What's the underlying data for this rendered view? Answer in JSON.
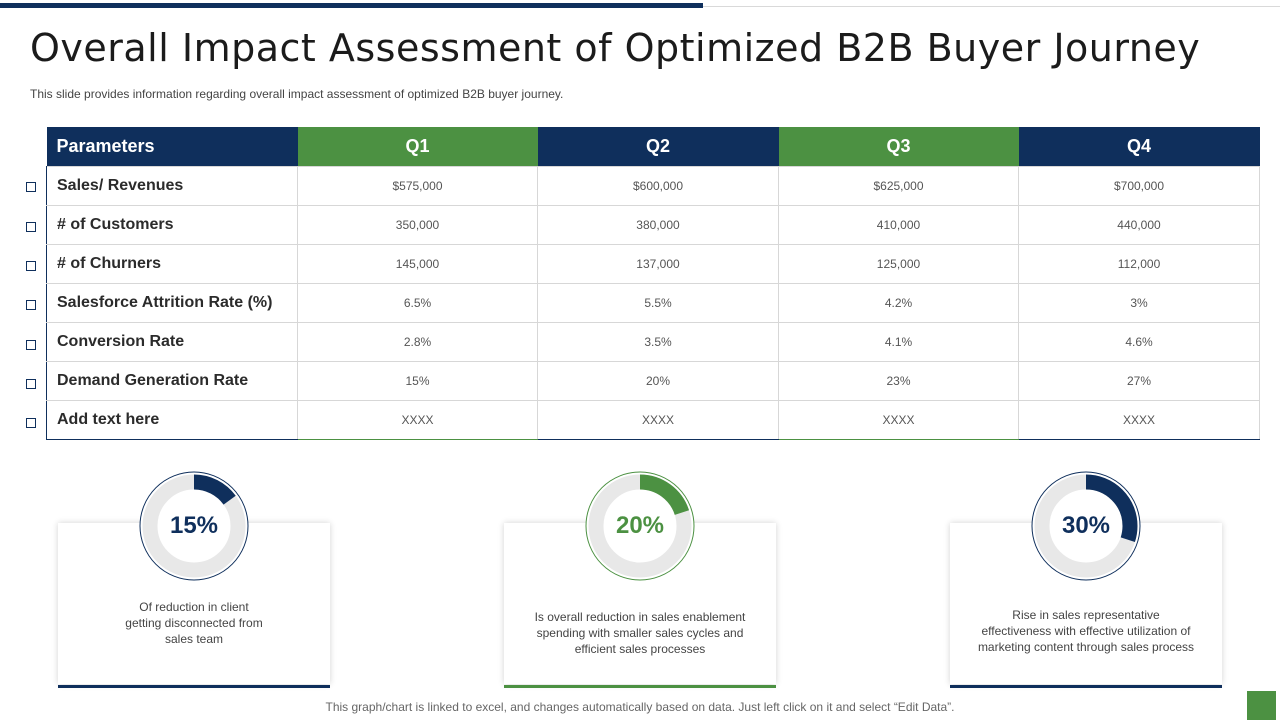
{
  "title": "Overall Impact Assessment of Optimized B2B Buyer Journey",
  "subtitle": "This slide provides  information  regarding  overall  impact assessment of optimized B2B buyer journey.",
  "colors": {
    "navy": "#0f2f5c",
    "green": "#4c9142",
    "ring_track": "#e8e8e8"
  },
  "table": {
    "headers": [
      "Parameters",
      "Q1",
      "Q2",
      "Q3",
      "Q4"
    ],
    "rows": [
      {
        "label": "Sales/ Revenues",
        "values": [
          "$575,000",
          "$600,000",
          "$625,000",
          "$700,000"
        ]
      },
      {
        "label": "# of Customers",
        "values": [
          "350,000",
          "380,000",
          "410,000",
          "440,000"
        ]
      },
      {
        "label": "# of Churners",
        "values": [
          "145,000",
          "137,000",
          "125,000",
          "112,000"
        ]
      },
      {
        "label": "Salesforce  Attrition Rate  (%)",
        "values": [
          "6.5%",
          "5.5%",
          "4.2%",
          "3%"
        ]
      },
      {
        "label": "Conversion Rate",
        "values": [
          "2.8%",
          "3.5%",
          "4.1%",
          "4.6%"
        ]
      },
      {
        "label": "Demand Generation Rate",
        "values": [
          "15%",
          "20%",
          "23%",
          "27%"
        ]
      },
      {
        "label": "Add text here",
        "values": [
          "XXXX",
          "XXXX",
          "XXXX",
          "XXXX"
        ]
      }
    ]
  },
  "stats": [
    {
      "percent": "15%",
      "value": 0.15,
      "color": "#0f2f5c",
      "desc": [
        "Of reduction in client",
        "getting disconnected from",
        "sales team"
      ]
    },
    {
      "percent": "20%",
      "value": 0.2,
      "color": "#4c9142",
      "desc": [
        "Is overall  reduction in sales enablement",
        "spending with smaller sales cycles and",
        "efficient sales processes"
      ]
    },
    {
      "percent": "30%",
      "value": 0.3,
      "color": "#0f2f5c",
      "desc": [
        "Rise in sales representative",
        "effectiveness  with effective  utilization of",
        "marketing content through sales process"
      ]
    }
  ],
  "footer": "This graph/chart is linked to excel, and changes automatically based on data. Just left click on it and select “Edit Data”."
}
